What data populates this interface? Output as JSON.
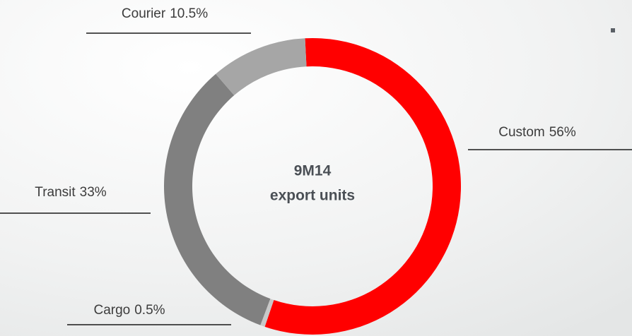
{
  "chart_data": {
    "type": "donut",
    "center_text": [
      "9M14",
      "export units"
    ],
    "categories": [
      "Custom",
      "Cargo",
      "Transit",
      "Courier"
    ],
    "values": [
      56,
      0.5,
      33,
      10.5
    ],
    "value_labels": [
      "56%",
      "0.5%",
      "33%",
      "10.5%"
    ],
    "colors": [
      "#ff0000",
      "#c8c8c8",
      "#808080",
      "#a6a6a6"
    ]
  }
}
